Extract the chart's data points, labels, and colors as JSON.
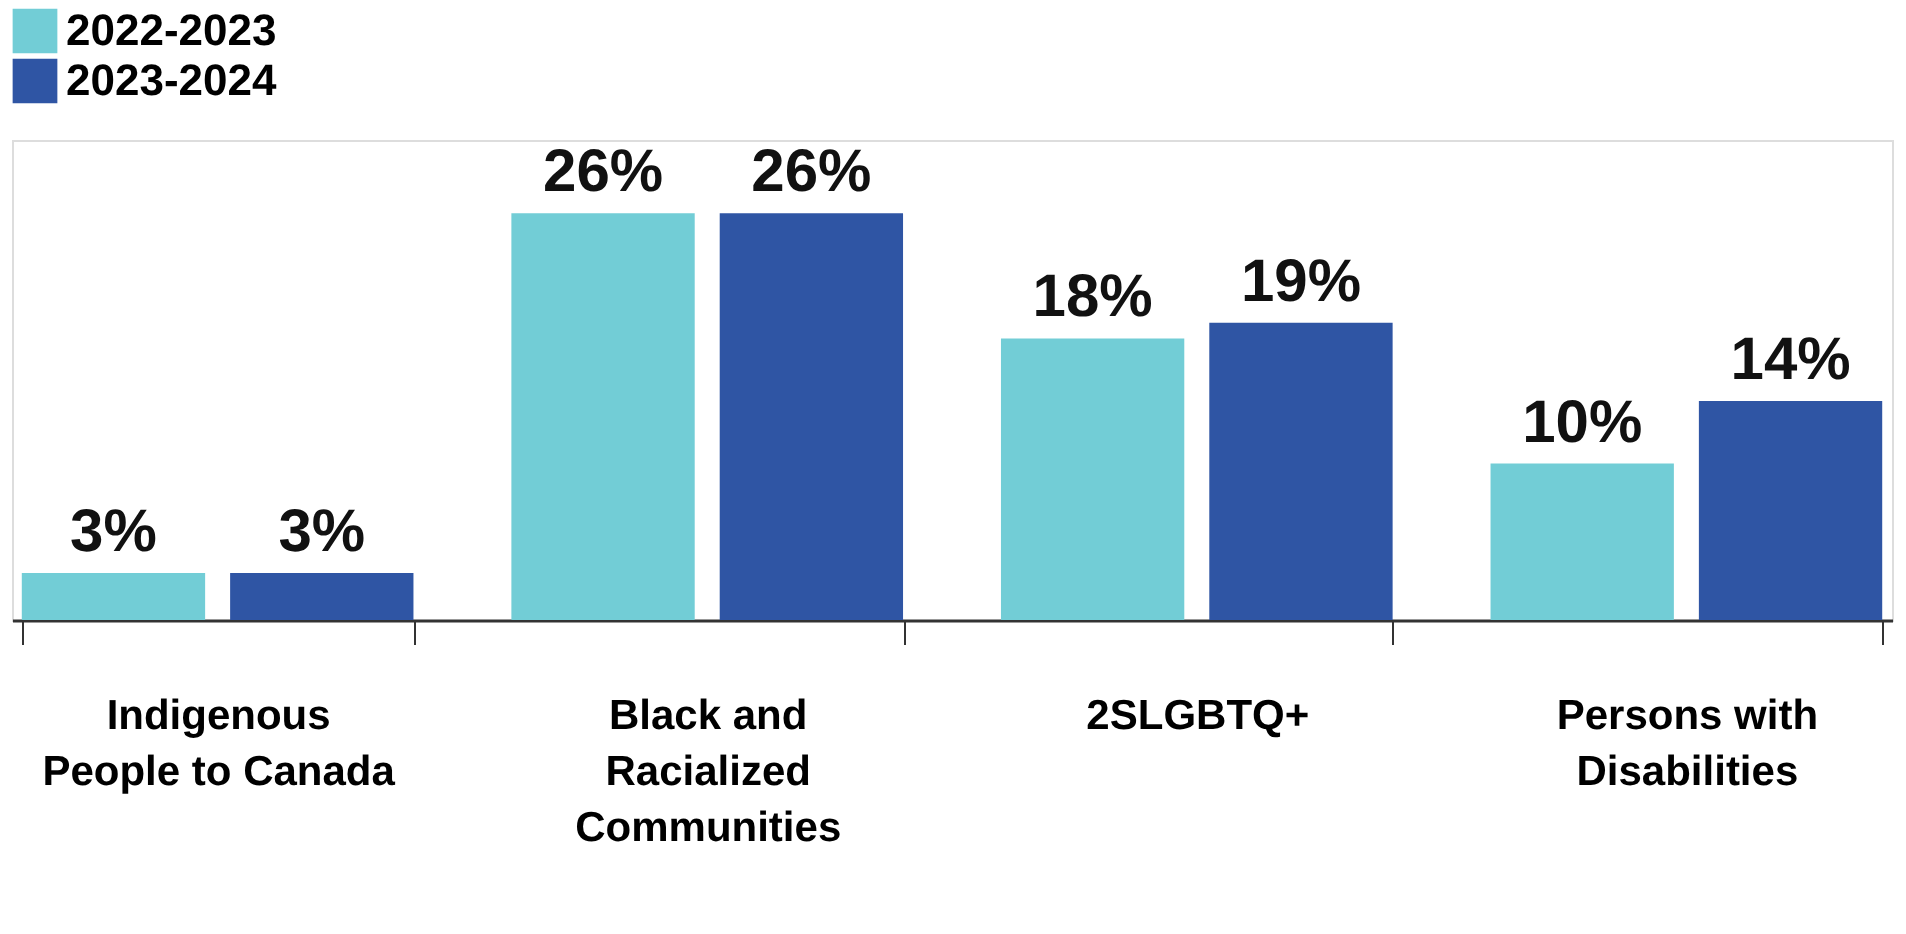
{
  "chart_data": {
    "type": "bar",
    "categories": [
      "Indigenous People to Canada",
      "Black and Racialized Communities",
      "2SLGBTQ+",
      "Persons with Disabilities"
    ],
    "series": [
      {
        "name": "2022-2023",
        "color": "#72cdd6",
        "values": [
          3,
          26,
          18,
          10
        ],
        "value_labels": [
          "3%",
          "26%",
          "18%",
          "10%"
        ]
      },
      {
        "name": "2023-2024",
        "color": "#2f55a4",
        "values": [
          3,
          26,
          19,
          14
        ],
        "value_labels": [
          "3%",
          "26%",
          "19%",
          "14%"
        ]
      }
    ],
    "legend": "top left",
    "grid": false,
    "tick_labels": "x"
  }
}
